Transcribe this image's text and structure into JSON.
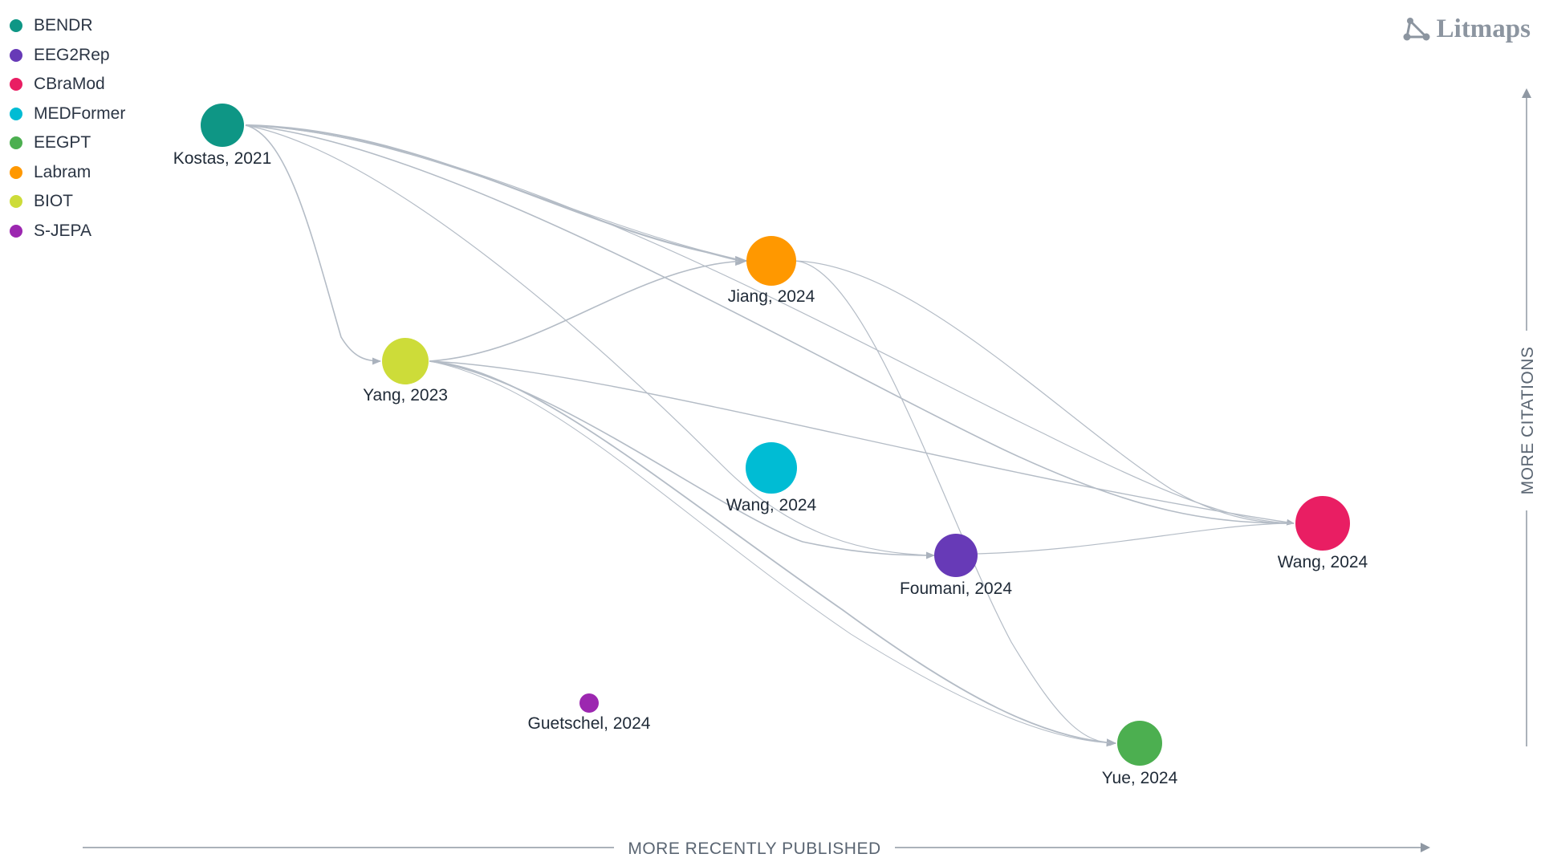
{
  "brand": {
    "name": "Litmaps",
    "icon": "litmaps-logo-icon"
  },
  "legend": [
    {
      "label": "BENDR",
      "color": "#0e9685"
    },
    {
      "label": "EEG2Rep",
      "color": "#673ab7"
    },
    {
      "label": "CBraMod",
      "color": "#e91e63"
    },
    {
      "label": "MEDFormer",
      "color": "#00bcd4"
    },
    {
      "label": "EEGPT",
      "color": "#4caf50"
    },
    {
      "label": "Labram",
      "color": "#ff9800"
    },
    {
      "label": "BIOT",
      "color": "#cddc39"
    },
    {
      "label": "S-JEPA",
      "color": "#9c27b0"
    }
  ],
  "axes": {
    "x_label": "MORE RECENTLY PUBLISHED",
    "y_label": "MORE CITATIONS"
  },
  "nodes": [
    {
      "id": "bendr",
      "label": "Kostas, 2021",
      "color": "#0e9685"
    },
    {
      "id": "biot",
      "label": "Yang, 2023",
      "color": "#cddc39"
    },
    {
      "id": "labram",
      "label": "Jiang, 2024",
      "color": "#ff9800"
    },
    {
      "id": "medformer",
      "label": "Wang, 2024",
      "color": "#00bcd4"
    },
    {
      "id": "eeg2rep",
      "label": "Foumani, 2024",
      "color": "#673ab7"
    },
    {
      "id": "cbramod",
      "label": "Wang, 2024",
      "color": "#e91e63"
    },
    {
      "id": "eegpt",
      "label": "Yue, 2024",
      "color": "#4caf50"
    },
    {
      "id": "sjepa",
      "label": "Guetschel, 2024",
      "color": "#9c27b0"
    }
  ]
}
